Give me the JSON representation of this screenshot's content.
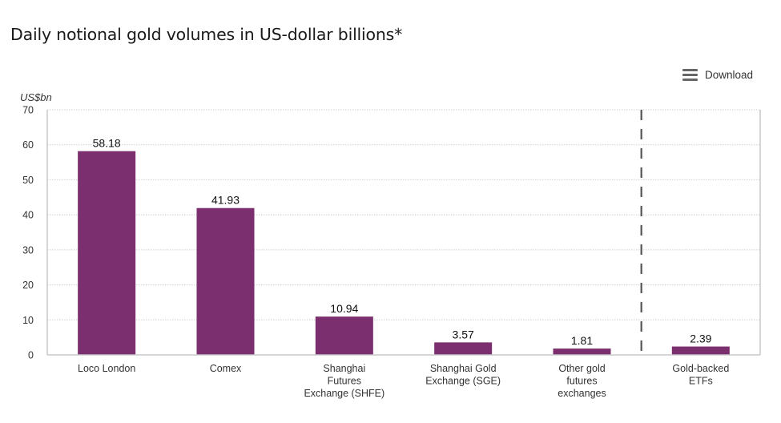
{
  "title": "Daily notional gold volumes in US-dollar billions*",
  "toolbar": {
    "download_label": "Download",
    "download_icon": "hamburger-menu-icon"
  },
  "chart_data": {
    "type": "bar",
    "title": "Daily notional gold volumes in US-dollar billions*",
    "ylabel": "US$bn",
    "xlabel": "",
    "ylim": [
      0,
      70
    ],
    "yticks": [
      0,
      10,
      20,
      30,
      40,
      50,
      60,
      70
    ],
    "grid": true,
    "categories": [
      [
        "Loco London"
      ],
      [
        "Comex"
      ],
      [
        "Shanghai",
        "Futures",
        "Exchange (SHFE)"
      ],
      [
        "Shanghai Gold",
        "Exchange (SGE)"
      ],
      [
        "Other gold",
        "futures",
        "exchanges"
      ],
      [
        "Gold-backed",
        "ETFs"
      ]
    ],
    "values": [
      58.18,
      41.93,
      10.94,
      3.57,
      1.81,
      2.39
    ],
    "data_labels": [
      "58.18",
      "41.93",
      "10.94",
      "3.57",
      "1.81",
      "2.39"
    ],
    "separator_after_category": 5,
    "colors": {
      "bar": "#7b2f6e",
      "axis": "#c8c8c8",
      "grid": "#d0d0d0",
      "separator": "#555555"
    }
  }
}
